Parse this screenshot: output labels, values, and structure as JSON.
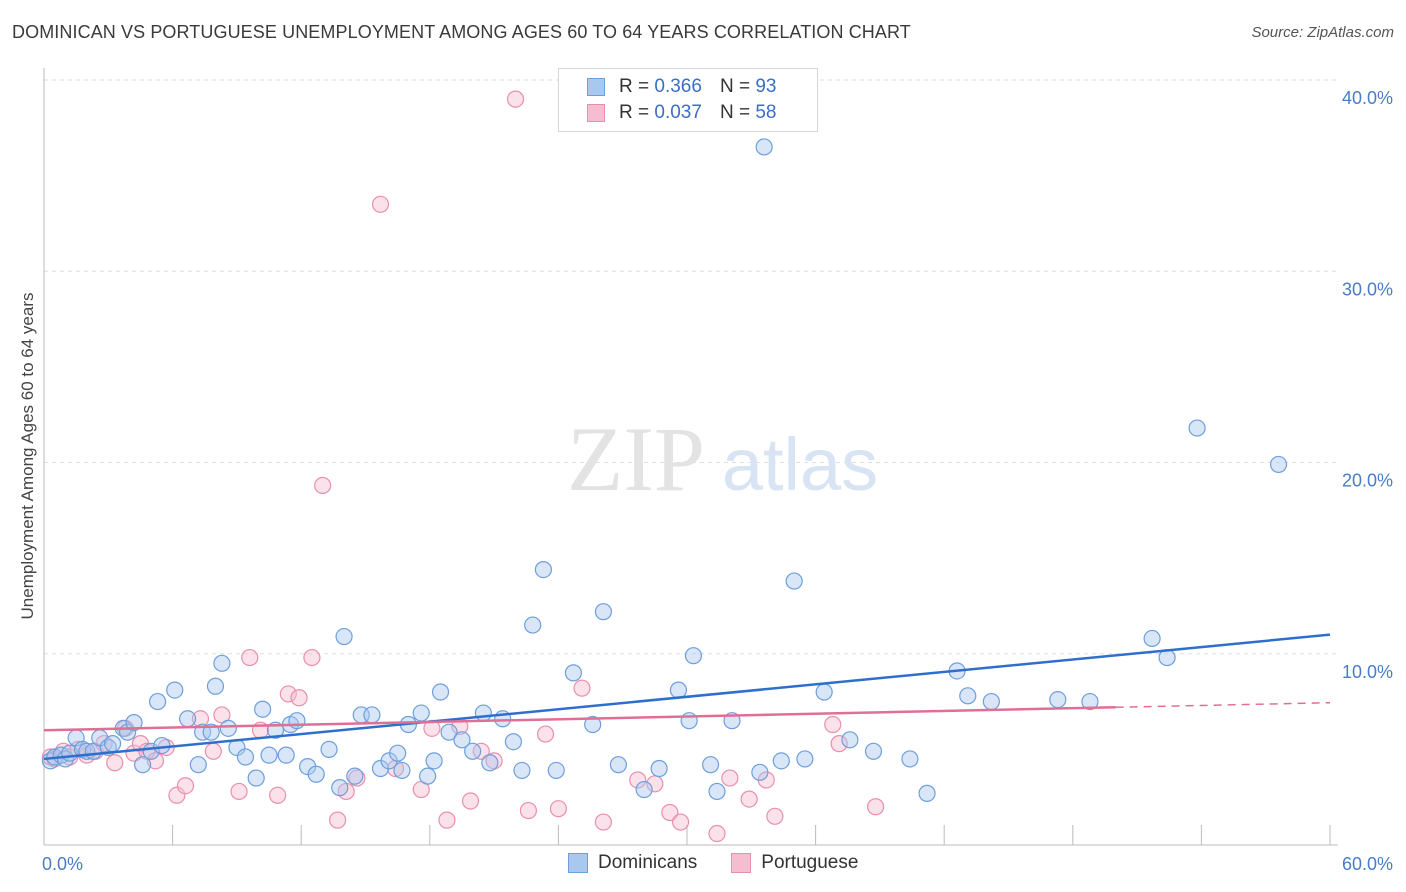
{
  "header": {
    "title": "DOMINICAN VS PORTUGUESE UNEMPLOYMENT AMONG AGES 60 TO 64 YEARS CORRELATION CHART",
    "source": "Source: ZipAtlas.com"
  },
  "watermark": {
    "zip": "ZIP",
    "atlas": "atlas"
  },
  "legend": {
    "rows": [
      {
        "r_label": "R =",
        "r_value": "0.366",
        "n_label": "N =",
        "n_value": "93"
      },
      {
        "r_label": "R =",
        "r_value": "0.037",
        "n_label": "N =",
        "n_value": "58"
      }
    ]
  },
  "bottom_legend": {
    "dominicans": "Dominicans",
    "portuguese": "Portuguese"
  },
  "colors": {
    "dominican_fill": "#a9c8f0",
    "dominican_stroke": "#6d9fdc",
    "dominican_line": "#2f6fcc",
    "portuguese_fill": "#f6bcd0",
    "portuguese_stroke": "#e98fae",
    "portuguese_line": "#e06f96",
    "tick": "#4a7cc7",
    "grid": "#dddddd"
  },
  "chart_data": {
    "type": "scatter",
    "title": "DOMINICAN VS PORTUGUESE UNEMPLOYMENT AMONG AGES 60 TO 64 YEARS CORRELATION CHART",
    "xlabel": "",
    "ylabel": "Unemployment Among Ages 60 to 64 years",
    "xlim": [
      0,
      60
    ],
    "ylim": [
      0,
      40
    ],
    "x_tick_labels": [
      "0.0%",
      "60.0%"
    ],
    "y_ticks": [
      10,
      20,
      30,
      40
    ],
    "y_tick_labels": [
      "10.0%",
      "20.0%",
      "30.0%",
      "40.0%"
    ],
    "grid": true,
    "legend_position": "top-center",
    "series": [
      {
        "name": "Dominicans",
        "R": 0.366,
        "N": 93,
        "trend": {
          "x": [
            0,
            60
          ],
          "y": [
            4.5,
            11.0
          ]
        },
        "points": [
          [
            0.3,
            4.4
          ],
          [
            0.5,
            4.6
          ],
          [
            0.8,
            4.7
          ],
          [
            1.0,
            4.5
          ],
          [
            1.2,
            4.8
          ],
          [
            1.5,
            5.6
          ],
          [
            1.8,
            5.0
          ],
          [
            2.0,
            4.9
          ],
          [
            2.3,
            4.9
          ],
          [
            2.6,
            5.6
          ],
          [
            3.0,
            5.1
          ],
          [
            3.2,
            5.3
          ],
          [
            3.7,
            6.1
          ],
          [
            3.9,
            5.9
          ],
          [
            4.2,
            6.4
          ],
          [
            4.6,
            4.2
          ],
          [
            5.0,
            4.9
          ],
          [
            5.3,
            7.5
          ],
          [
            5.5,
            5.2
          ],
          [
            6.1,
            8.1
          ],
          [
            6.7,
            6.6
          ],
          [
            7.2,
            4.2
          ],
          [
            7.4,
            5.9
          ],
          [
            7.8,
            5.9
          ],
          [
            8.0,
            8.3
          ],
          [
            8.3,
            9.5
          ],
          [
            8.6,
            6.1
          ],
          [
            9.0,
            5.1
          ],
          [
            9.4,
            4.6
          ],
          [
            9.9,
            3.5
          ],
          [
            10.2,
            7.1
          ],
          [
            10.5,
            4.7
          ],
          [
            10.8,
            6.0
          ],
          [
            11.3,
            4.7
          ],
          [
            11.5,
            6.3
          ],
          [
            11.8,
            6.5
          ],
          [
            12.3,
            4.1
          ],
          [
            12.7,
            3.7
          ],
          [
            13.3,
            5.0
          ],
          [
            13.8,
            3.0
          ],
          [
            14.0,
            10.9
          ],
          [
            14.5,
            3.6
          ],
          [
            14.8,
            6.8
          ],
          [
            15.3,
            6.8
          ],
          [
            15.7,
            4.0
          ],
          [
            16.1,
            4.4
          ],
          [
            16.5,
            4.8
          ],
          [
            16.7,
            3.9
          ],
          [
            17.0,
            6.3
          ],
          [
            17.6,
            6.9
          ],
          [
            17.9,
            3.6
          ],
          [
            18.2,
            4.4
          ],
          [
            18.5,
            8.0
          ],
          [
            18.9,
            5.9
          ],
          [
            19.5,
            5.5
          ],
          [
            20.0,
            4.9
          ],
          [
            20.5,
            6.9
          ],
          [
            20.8,
            4.3
          ],
          [
            21.4,
            6.6
          ],
          [
            21.9,
            5.4
          ],
          [
            22.3,
            3.9
          ],
          [
            22.8,
            11.5
          ],
          [
            23.3,
            14.4
          ],
          [
            23.9,
            3.9
          ],
          [
            24.7,
            9.0
          ],
          [
            25.6,
            6.3
          ],
          [
            26.1,
            12.2
          ],
          [
            26.8,
            4.2
          ],
          [
            28.0,
            2.9
          ],
          [
            28.7,
            4.0
          ],
          [
            29.6,
            8.1
          ],
          [
            30.1,
            6.5
          ],
          [
            30.3,
            9.9
          ],
          [
            31.1,
            4.2
          ],
          [
            31.4,
            2.8
          ],
          [
            32.1,
            6.5
          ],
          [
            33.4,
            3.8
          ],
          [
            33.6,
            36.5
          ],
          [
            34.4,
            4.4
          ],
          [
            35.0,
            13.8
          ],
          [
            35.5,
            4.5
          ],
          [
            36.4,
            8.0
          ],
          [
            37.6,
            5.5
          ],
          [
            38.7,
            4.9
          ],
          [
            40.4,
            4.5
          ],
          [
            41.2,
            2.7
          ],
          [
            42.6,
            9.1
          ],
          [
            43.1,
            7.8
          ],
          [
            44.2,
            7.5
          ],
          [
            47.3,
            7.6
          ],
          [
            48.8,
            7.5
          ],
          [
            51.7,
            10.8
          ],
          [
            52.4,
            9.8
          ],
          [
            53.8,
            21.8
          ],
          [
            57.6,
            19.9
          ]
        ]
      },
      {
        "name": "Portuguese",
        "R": 0.037,
        "N": 58,
        "trend": {
          "x": [
            0,
            50
          ],
          "y": [
            6.0,
            7.2
          ]
        },
        "points": [
          [
            0.3,
            4.6
          ],
          [
            0.5,
            4.5
          ],
          [
            0.9,
            4.9
          ],
          [
            1.2,
            4.6
          ],
          [
            1.6,
            5.0
          ],
          [
            2.0,
            4.7
          ],
          [
            2.4,
            4.9
          ],
          [
            2.8,
            5.3
          ],
          [
            3.3,
            4.3
          ],
          [
            3.8,
            6.1
          ],
          [
            4.2,
            4.8
          ],
          [
            4.5,
            5.3
          ],
          [
            4.8,
            4.9
          ],
          [
            5.2,
            4.4
          ],
          [
            5.7,
            5.1
          ],
          [
            6.2,
            2.6
          ],
          [
            6.6,
            3.1
          ],
          [
            7.3,
            6.6
          ],
          [
            7.9,
            4.9
          ],
          [
            8.3,
            6.8
          ],
          [
            9.1,
            2.8
          ],
          [
            9.6,
            9.8
          ],
          [
            10.1,
            6.0
          ],
          [
            10.9,
            2.6
          ],
          [
            11.4,
            7.9
          ],
          [
            11.9,
            7.7
          ],
          [
            12.5,
            9.8
          ],
          [
            13.0,
            18.8
          ],
          [
            13.7,
            1.3
          ],
          [
            14.1,
            2.8
          ],
          [
            14.6,
            3.5
          ],
          [
            15.7,
            33.5
          ],
          [
            16.4,
            4.0
          ],
          [
            17.6,
            2.9
          ],
          [
            18.1,
            6.1
          ],
          [
            18.8,
            1.3
          ],
          [
            19.4,
            6.2
          ],
          [
            19.9,
            2.3
          ],
          [
            20.4,
            4.9
          ],
          [
            21.0,
            4.4
          ],
          [
            22.0,
            39.0
          ],
          [
            22.6,
            1.8
          ],
          [
            23.4,
            5.8
          ],
          [
            24.0,
            1.9
          ],
          [
            25.1,
            8.2
          ],
          [
            26.1,
            1.2
          ],
          [
            27.7,
            3.4
          ],
          [
            28.5,
            3.2
          ],
          [
            29.2,
            1.7
          ],
          [
            29.7,
            1.2
          ],
          [
            31.4,
            0.6
          ],
          [
            32.0,
            3.5
          ],
          [
            32.9,
            2.4
          ],
          [
            33.7,
            3.4
          ],
          [
            34.1,
            1.5
          ],
          [
            36.8,
            6.3
          ],
          [
            37.1,
            5.3
          ],
          [
            38.8,
            2.0
          ]
        ]
      }
    ]
  }
}
